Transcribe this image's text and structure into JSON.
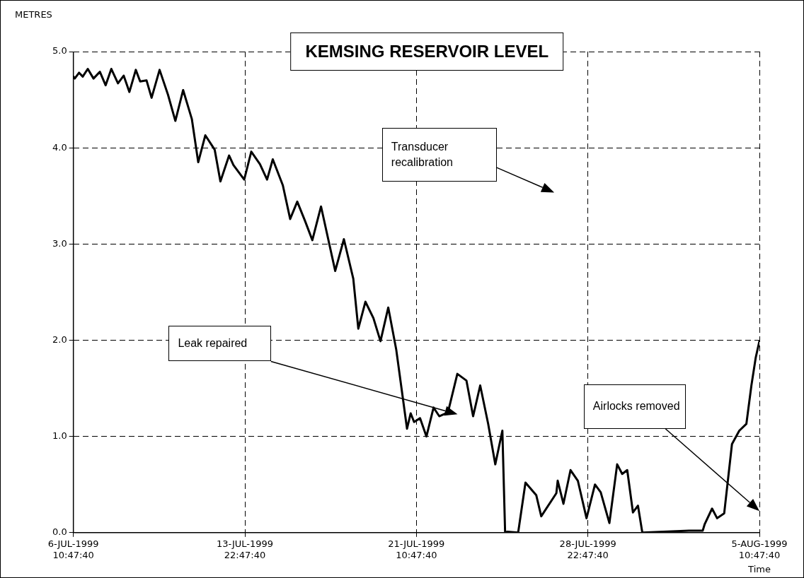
{
  "chart_data": {
    "type": "line",
    "title": "KEMSING RESERVOIR LEVEL",
    "ylabel": "METRES",
    "xlabel": "Time",
    "x": [
      "1999-07-06T10:47",
      "1999-07-06T12:13",
      "1999-07-06T16:47",
      "1999-07-06T20:37",
      "1999-07-07T01:54",
      "1999-07-07T07:54",
      "1999-07-07T14:37",
      "1999-07-07T20:37",
      "1999-07-08T02:37",
      "1999-07-08T09:35",
      "1999-07-08T15:35",
      "1999-07-08T21:35",
      "1999-07-09T04:18",
      "1999-07-09T08:52",
      "1999-07-09T15:35",
      "1999-07-09T20:52",
      "1999-07-10T05:16",
      "1999-07-10T14:08",
      "1999-07-10T21:49",
      "1999-07-11T05:59",
      "1999-07-11T15:06",
      "1999-07-11T21:49",
      "1999-07-12T05:16",
      "1999-07-12T15:06",
      "1999-07-12T21:06",
      "1999-07-13T06:13",
      "1999-07-13T10:47",
      "1999-07-13T22:04",
      "1999-07-14T05:30",
      "1999-07-14T14:37",
      "1999-07-14T22:04",
      "1999-07-15T04:04",
      "1999-07-15T14:37",
      "1999-07-15T22:18",
      "1999-07-16T05:45",
      "1999-07-16T13:54",
      "1999-07-16T21:35",
      "1999-07-17T06:42",
      "1999-07-17T21:35",
      "1999-07-18T06:42",
      "1999-07-18T16:33",
      "1999-07-18T21:49",
      "1999-07-19T05:16",
      "1999-07-19T13:40",
      "1999-07-19T21:06",
      "1999-07-20T05:16",
      "1999-07-20T13:40",
      "1999-07-21T00:57",
      "1999-07-21T04:47",
      "1999-07-21T08:23",
      "1999-07-21T14:37",
      "1999-07-21T21:20",
      "1999-07-22T04:47",
      "1999-07-22T10:47",
      "1999-07-22T19:54",
      "1999-07-23T05:45",
      "1999-07-23T15:20",
      "1999-07-23T22:18",
      "1999-07-24T05:45",
      "1999-07-24T14:08",
      "1999-07-24T21:35",
      "1999-07-25T05:01",
      "1999-07-25T07:54",
      "1999-07-25T10:18",
      "1999-07-25T21:35",
      "1999-07-26T05:16",
      "1999-07-26T16:33",
      "1999-07-26T21:49",
      "1999-07-27T13:40",
      "1999-07-27T15:06",
      "1999-07-27T21:06",
      "1999-07-28T04:33",
      "1999-07-28T12:13",
      "1999-07-28T21:20",
      "1999-07-29T06:13",
      "1999-07-29T12:13",
      "1999-07-29T21:20",
      "1999-07-30T05:30",
      "1999-07-30T10:47",
      "1999-07-30T16:04",
      "1999-07-30T22:04",
      "1999-07-31T03:20",
      "1999-07-31T07:54",
      "1999-08-02T08:52",
      "1999-08-02T23:16",
      "1999-08-03T01:25",
      "1999-08-03T09:06",
      "1999-08-03T14:23",
      "1999-08-03T21:49",
      "1999-08-04T05:59",
      "1999-08-04T13:40",
      "1999-08-04T21:06",
      "1999-08-05T02:23",
      "1999-08-05T06:56",
      "1999-08-05T10:47"
    ],
    "series": [
      {
        "color": "#000000",
        "values": [
          4.74,
          4.72,
          4.78,
          4.74,
          4.82,
          4.72,
          4.79,
          4.65,
          4.82,
          4.67,
          4.75,
          4.58,
          4.81,
          4.69,
          4.7,
          4.52,
          4.81,
          4.55,
          4.28,
          4.6,
          4.3,
          3.85,
          4.13,
          3.98,
          3.65,
          3.92,
          3.82,
          3.67,
          3.96,
          3.83,
          3.67,
          3.88,
          3.61,
          3.26,
          3.44,
          3.24,
          3.04,
          3.39,
          2.72,
          3.05,
          2.64,
          2.12,
          2.4,
          2.23,
          1.99,
          2.34,
          1.9,
          1.08,
          1.24,
          1.15,
          1.19,
          1.0,
          1.3,
          1.21,
          1.25,
          1.65,
          1.58,
          1.21,
          1.53,
          1.13,
          0.71,
          1.06,
          0.0,
          0.01,
          0.0,
          0.52,
          0.39,
          0.17,
          0.41,
          0.54,
          0.3,
          0.65,
          0.54,
          0.15,
          0.5,
          0.42,
          0.1,
          0.71,
          0.61,
          0.65,
          0.21,
          0.28,
          0.0,
          0.02,
          0.02,
          0.09,
          0.25,
          0.15,
          0.2,
          0.92,
          1.06,
          1.13,
          1.53,
          1.82,
          1.99
        ]
      }
    ],
    "xlim": [
      "1999-07-06T10:47",
      "1999-08-05T10:47"
    ],
    "xticks": [
      {
        "value": "1999-07-06T10:47",
        "label": "6-JUL-1999\n10:47:40"
      },
      {
        "value": "1999-07-13T22:47",
        "label": "13-JUL-1999\n22:47:40"
      },
      {
        "value": "1999-07-21T10:47",
        "label": "21-JUL-1999\n10:47:40"
      },
      {
        "value": "1999-07-28T22:47",
        "label": "28-JUL-1999\n22:47:40"
      },
      {
        "value": "1999-08-05T10:47",
        "label": "5-AUG-1999\n10:47:40"
      }
    ],
    "ylim": [
      0,
      5
    ],
    "yticks": [
      {
        "value": 0,
        "label": "0.0"
      },
      {
        "value": 1,
        "label": "1.0"
      },
      {
        "value": 2,
        "label": "2.0"
      },
      {
        "value": 3,
        "label": "3.0"
      },
      {
        "value": 4,
        "label": "4.0"
      },
      {
        "value": 5,
        "label": "5.0"
      }
    ],
    "grid": true,
    "legend": false,
    "marker": "none",
    "line_style": "solid",
    "annotations": [
      "Transducer\nrecalibration",
      "Leak repaired",
      "Airlocks removed"
    ]
  }
}
